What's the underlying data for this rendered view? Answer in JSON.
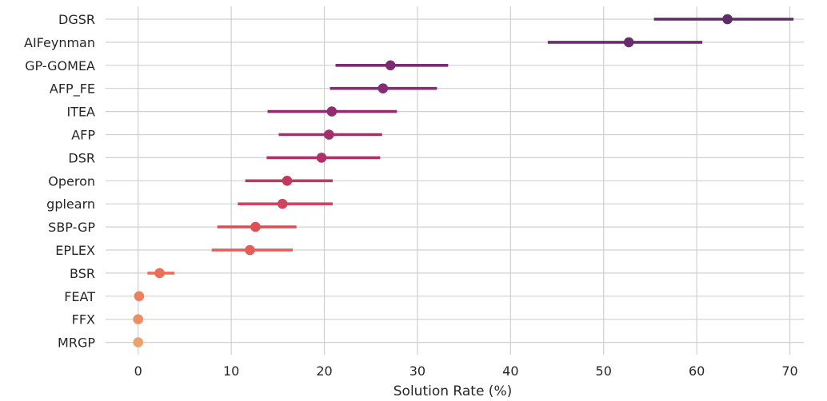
{
  "chart_data": {
    "type": "dot-errorbar",
    "title": "",
    "xlabel": "Solution Rate (%)",
    "ylabel": "",
    "xlim": [
      -3.5,
      71.5
    ],
    "xticks": [
      0,
      10,
      20,
      30,
      40,
      50,
      60,
      70
    ],
    "grid": true,
    "categories": [
      "DGSR",
      "AIFeynman",
      "GP-GOMEA",
      "AFP_FE",
      "ITEA",
      "AFP",
      "DSR",
      "Operon",
      "gplearn",
      "SBP-GP",
      "EPLEX",
      "BSR",
      "FEAT",
      "FFX",
      "MRGP"
    ],
    "values": [
      63.3,
      52.7,
      27.1,
      26.3,
      20.8,
      20.5,
      19.7,
      16.0,
      15.5,
      12.6,
      12.0,
      2.3,
      0.1,
      0.0,
      0.0
    ],
    "ci_low": [
      55.4,
      44.0,
      21.2,
      20.6,
      13.9,
      15.1,
      13.8,
      11.5,
      10.7,
      8.5,
      7.9,
      1.0,
      0.1,
      0.0,
      0.0
    ],
    "ci_high": [
      70.4,
      60.6,
      33.3,
      32.1,
      27.8,
      26.2,
      26.0,
      20.9,
      20.9,
      17.0,
      16.6,
      3.9,
      0.1,
      0.0,
      0.0
    ],
    "colors": [
      "#5c2d67",
      "#6a2b6e",
      "#7a2b71",
      "#852c72",
      "#922c71",
      "#a32f6c",
      "#b03168",
      "#c2385f",
      "#d2445b",
      "#dc5156",
      "#e45e57",
      "#ea6f57",
      "#ec805d",
      "#eb9063",
      "#eaa16e"
    ]
  }
}
